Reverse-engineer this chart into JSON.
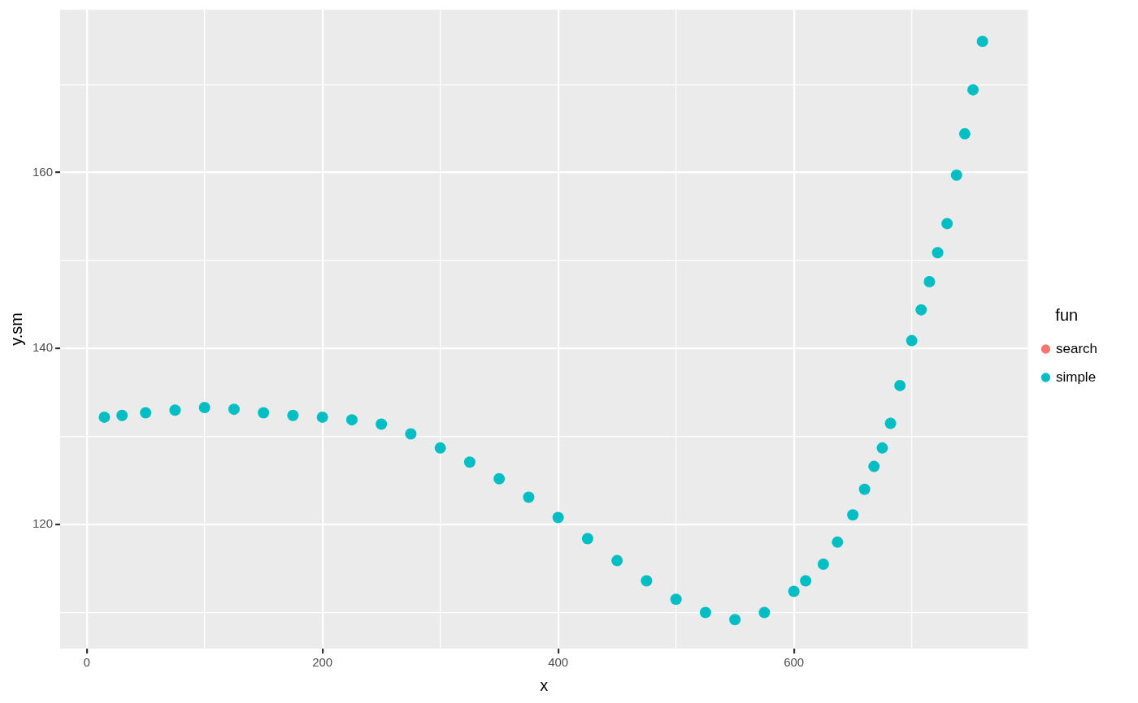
{
  "chart_data": {
    "type": "scatter",
    "xlabel": "x",
    "ylabel": "y.sm",
    "legend_title": "fun",
    "legend": "right",
    "grid": true,
    "marker": "circle",
    "xlim": [
      -22.5,
      798.5
    ],
    "xticks": [
      0,
      {
        "value": 100,
        "label": null
      },
      200,
      {
        "value": 300,
        "label": null
      },
      400,
      {
        "value": 500,
        "label": null
      },
      600,
      {
        "value": 700,
        "label": null
      }
    ],
    "ylim": [
      105.9,
      178.5
    ],
    "yticks": [
      {
        "value": 110,
        "label": null
      },
      120,
      {
        "value": 130,
        "label": null
      },
      140,
      {
        "value": 150,
        "label": null
      },
      160,
      {
        "value": 170,
        "label": null
      }
    ],
    "x": [
      15,
      30,
      50,
      75,
      100,
      125,
      150,
      175,
      200,
      225,
      250,
      275,
      300,
      325,
      350,
      375,
      400,
      425,
      450,
      475,
      500,
      525,
      550,
      575,
      600,
      610,
      625,
      637,
      650,
      660,
      668,
      675,
      682,
      690,
      700,
      708,
      715,
      722,
      730,
      738,
      745,
      752,
      760
    ],
    "series": [
      {
        "name": "search",
        "color": "#f8766d",
        "values": [
          null,
          null,
          null,
          null,
          null,
          null,
          null,
          null,
          null,
          null,
          null,
          null,
          null,
          null,
          null,
          null,
          null,
          null,
          null,
          null,
          null,
          null,
          null,
          null,
          null,
          null,
          null,
          null,
          null,
          null,
          null,
          null,
          null,
          null,
          null,
          null,
          null,
          null,
          null,
          null,
          null,
          null,
          null
        ]
      },
      {
        "name": "simple",
        "color": "#00bfc4",
        "values": [
          132.2,
          132.4,
          132.7,
          133.0,
          133.3,
          133.1,
          132.7,
          132.4,
          132.2,
          131.9,
          131.4,
          130.3,
          128.7,
          127.1,
          125.2,
          123.1,
          120.8,
          118.4,
          115.9,
          113.6,
          111.5,
          110.0,
          109.2,
          110.0,
          112.4,
          113.6,
          115.5,
          118.0,
          121.1,
          124.0,
          126.6,
          128.7,
          131.5,
          135.8,
          140.9,
          144.4,
          147.6,
          150.9,
          154.2,
          159.7,
          164.4,
          169.4,
          174.9
        ]
      }
    ]
  }
}
